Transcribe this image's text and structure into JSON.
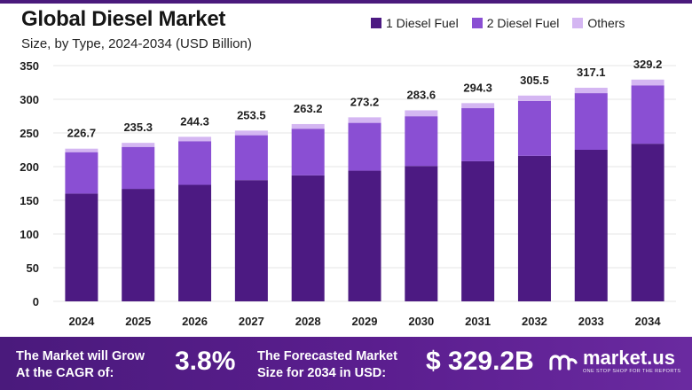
{
  "title": "Global Diesel Market",
  "subtitle": "Size, by Type, 2024-2034 (USD Billion)",
  "colors": {
    "diesel_fuel_1": "#4c1a82",
    "diesel_fuel_2": "#8a4fd3",
    "others": "#d4b6f2",
    "accent": "#4a1a7c"
  },
  "chart_data": {
    "type": "bar",
    "stacked": true,
    "categories": [
      "2024",
      "2025",
      "2026",
      "2027",
      "2028",
      "2029",
      "2030",
      "2031",
      "2032",
      "2033",
      "2034"
    ],
    "series": [
      {
        "name": "1 Diesel Fuel",
        "color": "#4c1a82",
        "values": [
          160,
          167,
          173,
          180,
          187,
          194,
          201,
          208,
          216,
          225,
          234
        ]
      },
      {
        "name": "2 Diesel Fuel",
        "color": "#8a4fd3",
        "values": [
          61.5,
          62.3,
          64.8,
          66.6,
          69.3,
          71.0,
          73.8,
          78.8,
          81.5,
          84.1,
          86.7
        ]
      },
      {
        "name": "Others",
        "color": "#d4b6f2",
        "values": [
          5.2,
          6.0,
          6.5,
          6.9,
          6.9,
          8.2,
          8.8,
          7.5,
          8.0,
          8.0,
          8.5
        ]
      }
    ],
    "totals": [
      226.7,
      235.3,
      244.3,
      253.5,
      263.2,
      273.2,
      283.6,
      294.3,
      305.5,
      317.1,
      329.2
    ],
    "total_labels": [
      "226.7",
      "235.3",
      "244.3",
      "253.5",
      "263.2",
      "273.2",
      "283.6",
      "294.3",
      "305.5",
      "317.1",
      "329.2"
    ],
    "y_ticks": [
      "0",
      "50",
      "100",
      "150",
      "200",
      "250",
      "300",
      "350"
    ],
    "ylim": [
      0,
      350
    ],
    "xlabel": "",
    "ylabel": "",
    "legend_position": "top-right",
    "grid": true
  },
  "footer": {
    "cagr_line1": "The Market will Grow",
    "cagr_line2": "At the CAGR of:",
    "cagr_value": "3.8%",
    "forecast_line1": "The Forecasted Market",
    "forecast_line2": "Size for 2034 in USD:",
    "forecast_value": "$ 329.2B",
    "logo_text": "market.us",
    "logo_tagline": "ONE STOP SHOP FOR THE REPORTS"
  }
}
